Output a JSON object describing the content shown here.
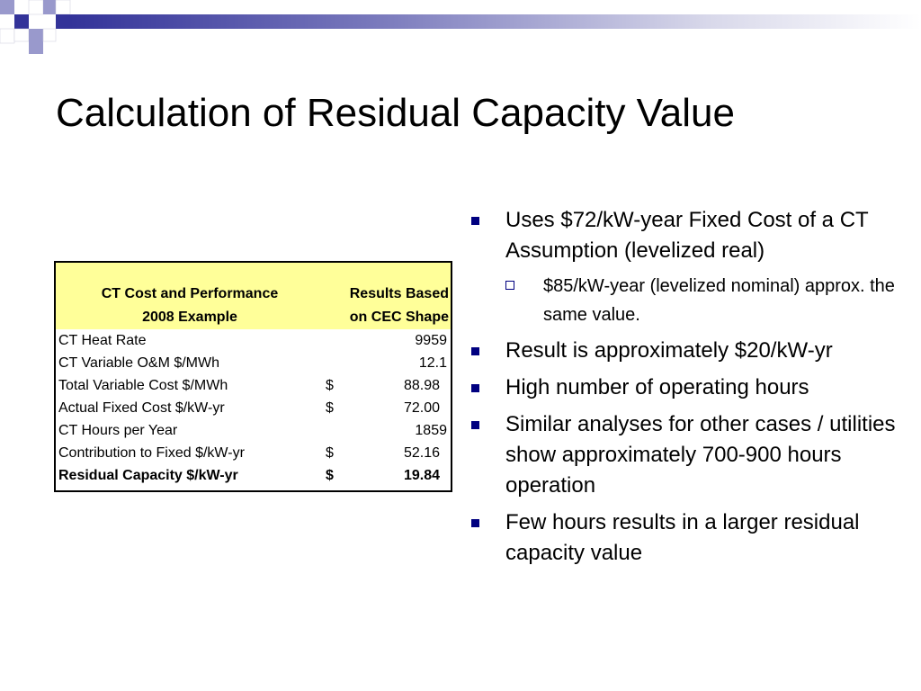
{
  "slide": {
    "title": "Calculation of Residual Capacity Value"
  },
  "theme": {
    "accent": "#333399",
    "accent_light": "#9999cc",
    "header_fill": "#ffff99",
    "bullet_color": "#000080"
  },
  "table": {
    "headers": {
      "label_line1": "CT Cost and Performance",
      "label_line2": "2008 Example",
      "value_line1": "Results Based",
      "value_line2": "on CEC Shape"
    },
    "rows": [
      {
        "label": "CT Heat Rate",
        "currency": "",
        "value": "9959"
      },
      {
        "label": "CT Variable O&M $/MWh",
        "currency": "",
        "value": "12.1"
      },
      {
        "label": "Total Variable Cost $/MWh",
        "currency": "$",
        "value": "88.98"
      },
      {
        "label": "Actual Fixed Cost $/kW-yr",
        "currency": "$",
        "value": "72.00"
      },
      {
        "label": "CT Hours per Year",
        "currency": "",
        "value": "1859"
      },
      {
        "label": "Contribution to Fixed $/kW-yr",
        "currency": "$",
        "value": "52.16"
      },
      {
        "label": "Residual Capacity $/kW-yr",
        "currency": "$",
        "value": "19.84"
      }
    ]
  },
  "bullets": [
    {
      "text": "Uses $72/kW-year Fixed Cost of a CT Assumption (levelized real)",
      "sub": "$85/kW-year (levelized nominal) approx. the same value."
    },
    {
      "text": "Result is approximately $20/kW-yr"
    },
    {
      "text": "High number of operating hours"
    },
    {
      "text": "Similar analyses for other cases / utilities show approximately 700-900 hours operation"
    },
    {
      "text": "Few hours results in a larger residual capacity value"
    }
  ]
}
